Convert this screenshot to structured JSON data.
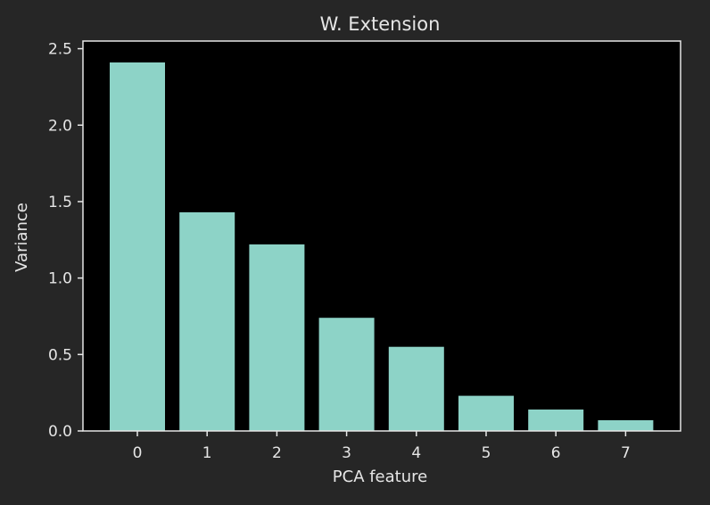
{
  "chart_data": {
    "type": "bar",
    "title": "W. Extension",
    "xlabel": "PCA feature",
    "ylabel": "Variance",
    "categories": [
      "0",
      "1",
      "2",
      "3",
      "4",
      "5",
      "6",
      "7"
    ],
    "values": [
      2.41,
      1.43,
      1.22,
      0.74,
      0.55,
      0.23,
      0.14,
      0.07
    ],
    "ylim": [
      0,
      2.55
    ],
    "yticks": [
      "0.0",
      "0.5",
      "1.0",
      "1.5",
      "2.0",
      "2.5"
    ],
    "grid": false,
    "colors": {
      "figure_background": "#262626",
      "plot_background": "#000000",
      "bar": "#8dd3c7",
      "axis": "#e6e6e6",
      "text": "#e6e6e6"
    }
  }
}
